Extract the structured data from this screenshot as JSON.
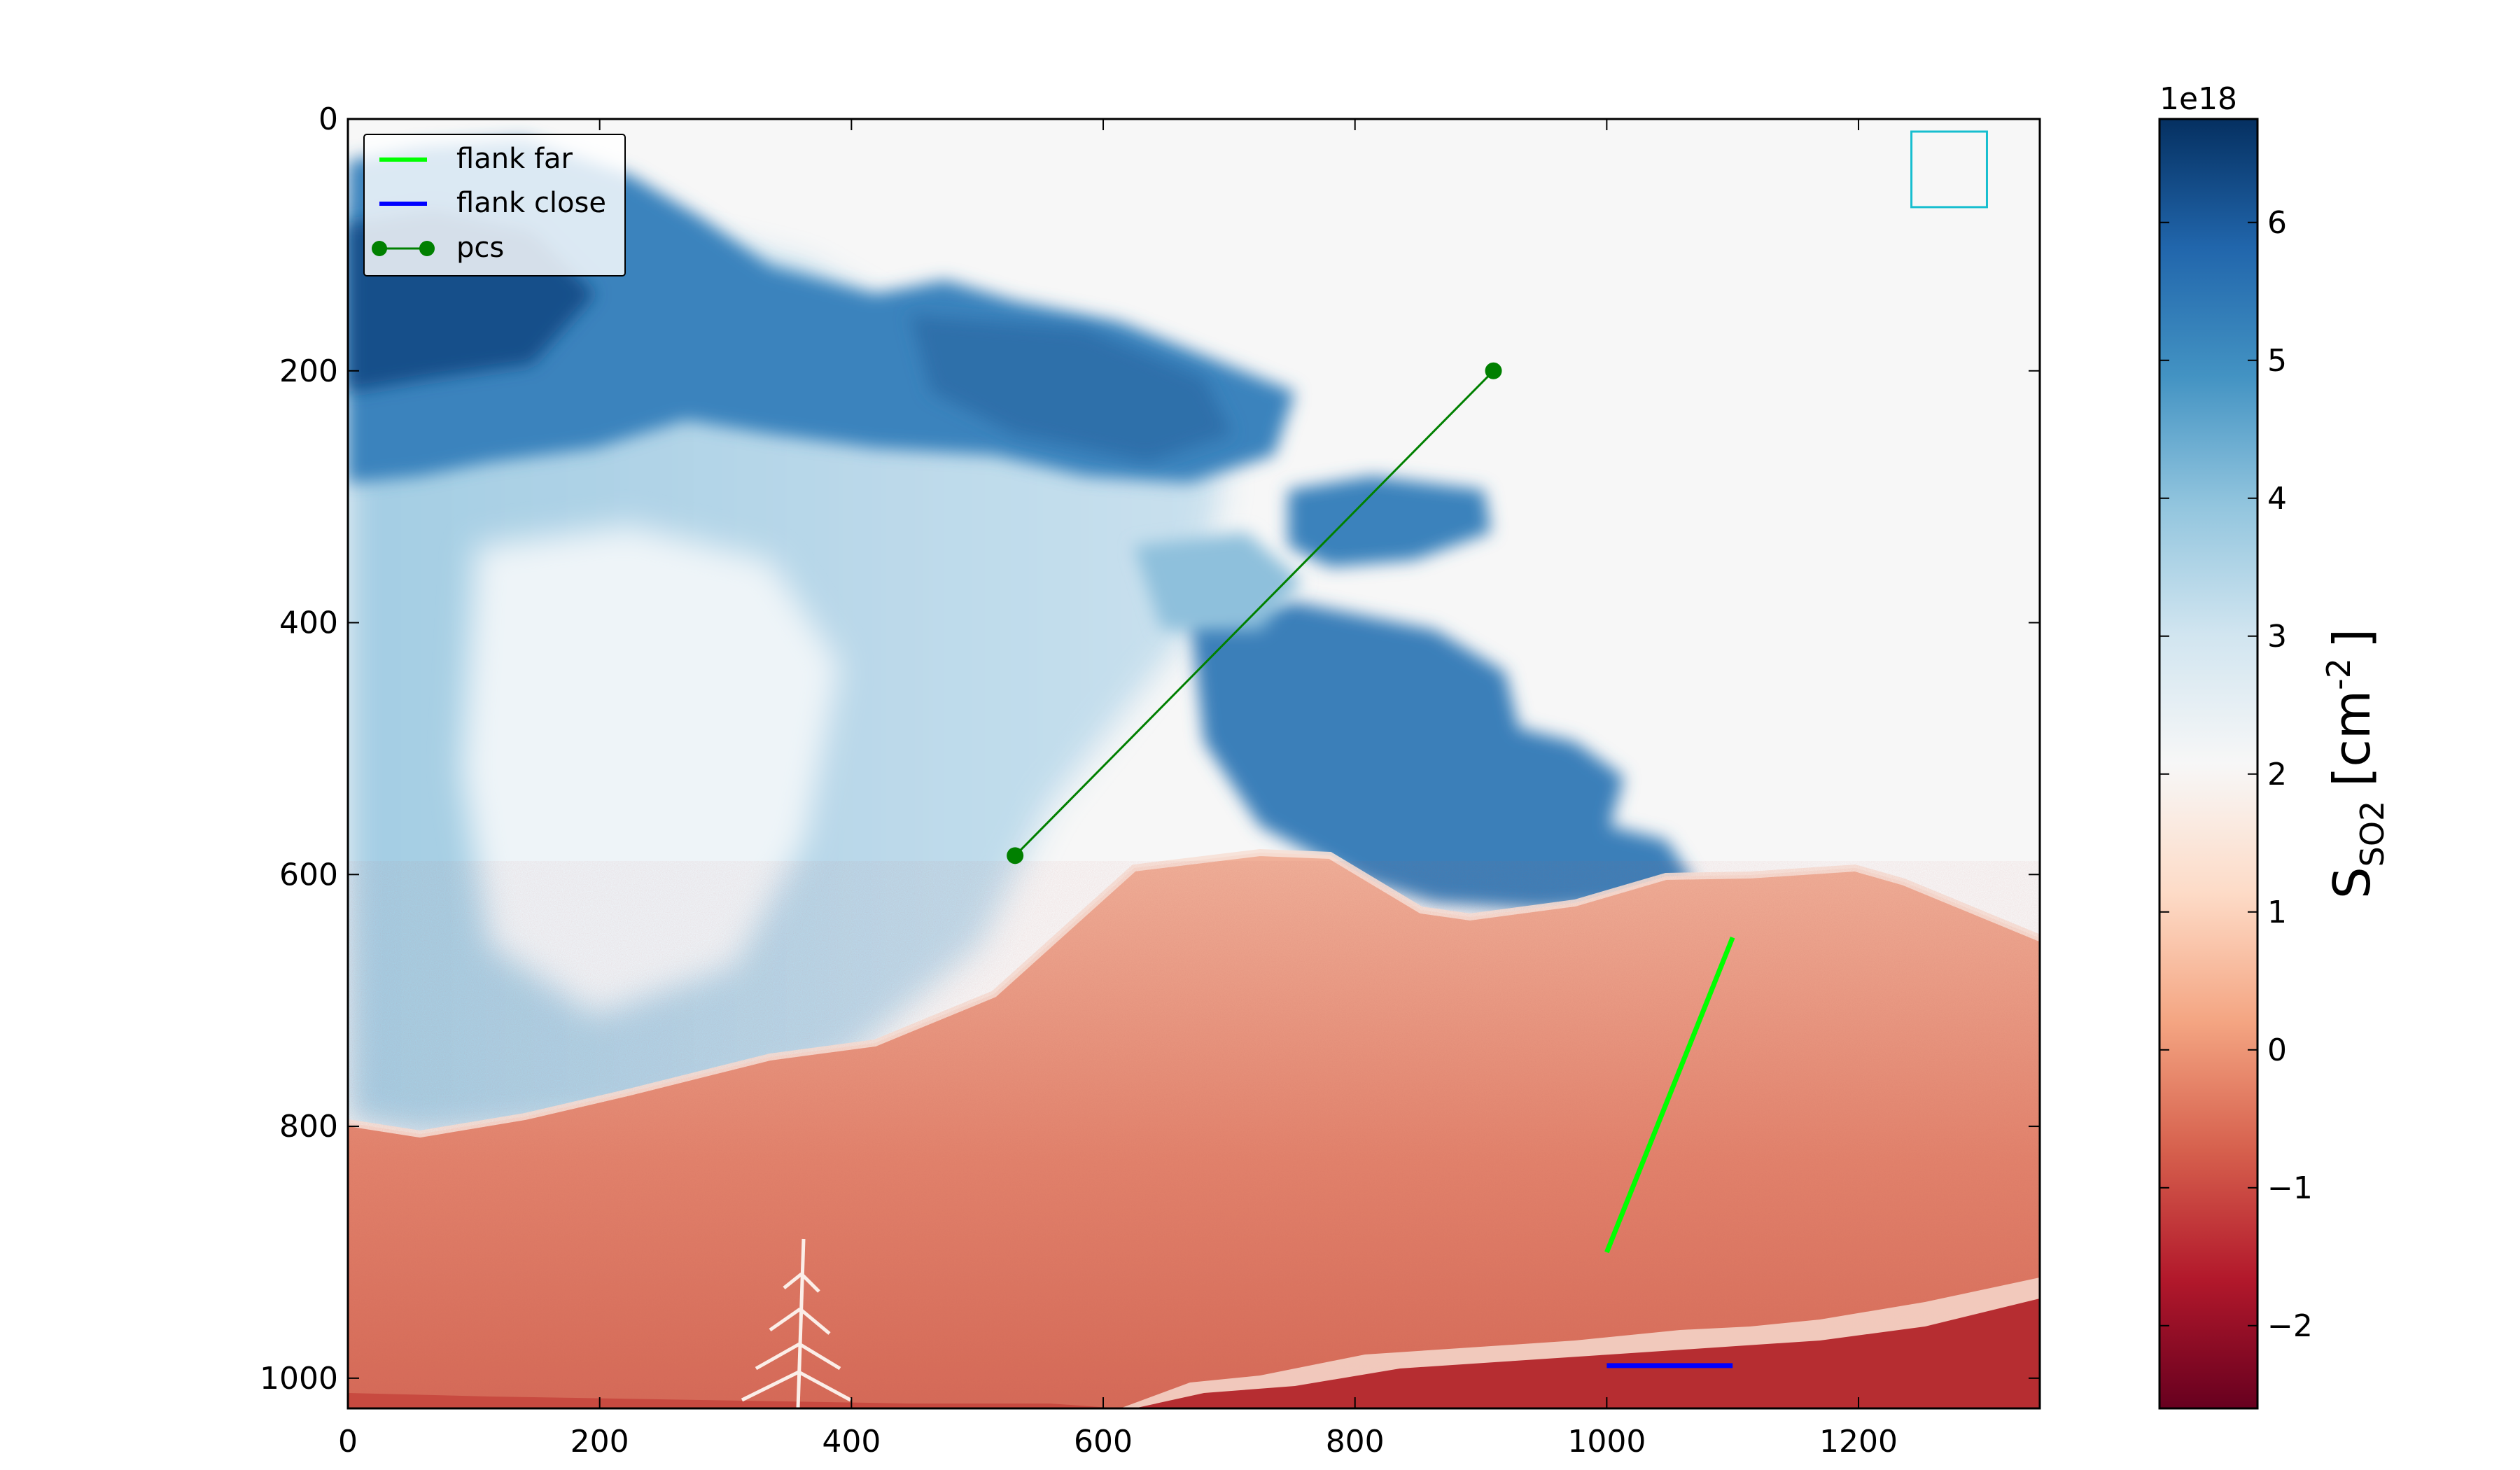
{
  "chart_data": {
    "type": "heatmap",
    "title": "",
    "xlabel": "",
    "ylabel": "",
    "xlim": [
      0,
      1344
    ],
    "ylim": [
      1024,
      0
    ],
    "x_ticks": [
      "0",
      "200",
      "400",
      "600",
      "800",
      "1000",
      "1200"
    ],
    "y_ticks": [
      "0",
      "200",
      "400",
      "600",
      "800",
      "1000"
    ],
    "colorbar": {
      "label_main": "S",
      "label_sub": "SO2",
      "label_units_open": "[cm",
      "label_units_exp": "-2",
      "label_units_close": "]",
      "exponent_label": "1e18",
      "range": [
        -2.6,
        6.75
      ],
      "ticks": [
        "−2",
        "−1",
        "0",
        "1",
        "2",
        "3",
        "4",
        "5",
        "6"
      ],
      "colormap": "RdBu",
      "colors": [
        "#67001f",
        "#b2182b",
        "#d6604d",
        "#f4a582",
        "#fddbc7",
        "#f7f7f7",
        "#d1e5f0",
        "#92c5de",
        "#4393c3",
        "#2166ac",
        "#053061"
      ]
    },
    "legend": {
      "placement": "upper-left",
      "entries": [
        {
          "name": "flank far",
          "color": "#00ff00",
          "style": "line"
        },
        {
          "name": "flank close",
          "color": "#0000ff",
          "style": "line"
        },
        {
          "name": "pcs",
          "color": "#008000",
          "style": "line-marker"
        }
      ]
    },
    "lines": [
      {
        "name": "flank far",
        "x": [
          1000,
          1100
        ],
        "y": [
          900,
          650
        ],
        "color": "#00ff00"
      },
      {
        "name": "flank close",
        "x": [
          1000,
          1100
        ],
        "y": [
          990,
          990
        ],
        "color": "#0000ff"
      },
      {
        "name": "pcs",
        "x": [
          530,
          910
        ],
        "y": [
          585,
          200
        ],
        "color": "#008000"
      }
    ],
    "rectangles": [
      {
        "x": [
          1242,
          1302
        ],
        "y": [
          10,
          70
        ],
        "color": "#17becf"
      }
    ]
  }
}
